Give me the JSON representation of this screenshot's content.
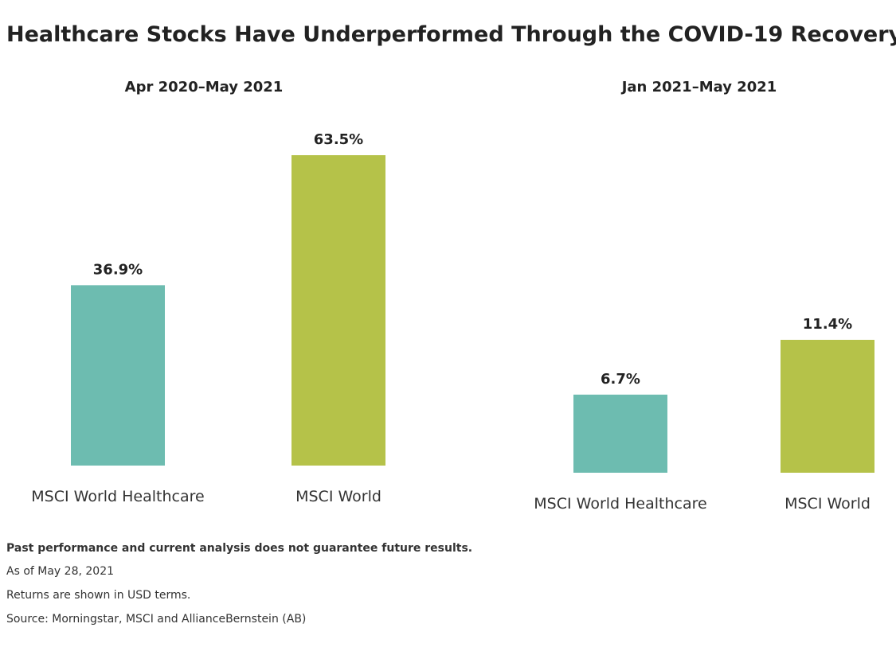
{
  "title": "Healthcare Stocks Have Underperformed Through the COVID-19 Recovery",
  "notes": [
    "Past performance and current analysis does not guarantee future results.",
    "As of May 28, 2021",
    "Returns are shown in USD terms.",
    "Source: Morningstar, MSCI and AllianceBernstein (AB)"
  ],
  "chart_data": [
    {
      "type": "bar",
      "title": "Apr 2020–May 2021",
      "categories": [
        "MSCI World Healthcare",
        "MSCI World"
      ],
      "values": [
        36.9,
        63.5
      ],
      "value_labels": [
        "36.9%",
        "63.5%"
      ],
      "colors": [
        "#6dbcb0",
        "#b5c249"
      ]
    },
    {
      "type": "bar",
      "title": "Jan 2021–May 2021",
      "categories": [
        "MSCI World Healthcare",
        "MSCI World"
      ],
      "values": [
        6.7,
        11.4
      ],
      "value_labels": [
        "6.7%",
        "11.4%"
      ],
      "colors": [
        "#6dbcb0",
        "#b5c249"
      ]
    }
  ]
}
